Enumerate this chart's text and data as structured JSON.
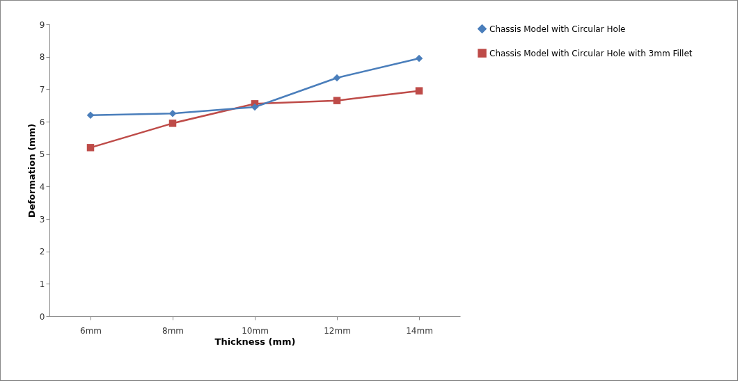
{
  "chart_data": {
    "type": "line",
    "xlabel": "Thickness (mm)",
    "ylabel": "Deformation (mm)",
    "categories": [
      "6mm",
      "8mm",
      "10mm",
      "12mm",
      "14mm"
    ],
    "series": [
      {
        "name": "Chassis Model with Circular Hole",
        "color": "#4a7ebb",
        "marker": "diamond",
        "values": [
          6.2,
          6.25,
          6.45,
          7.35,
          7.95
        ]
      },
      {
        "name": "Chassis Model with Circular Hole with 3mm Fillet",
        "color": "#be4b48",
        "marker": "square",
        "values": [
          5.2,
          5.95,
          6.55,
          6.65,
          6.95
        ]
      }
    ],
    "ylim": [
      0,
      9
    ],
    "yticks": [
      0,
      1,
      2,
      3,
      4,
      5,
      6,
      7,
      8,
      9
    ],
    "grid": false,
    "legend": "right"
  }
}
